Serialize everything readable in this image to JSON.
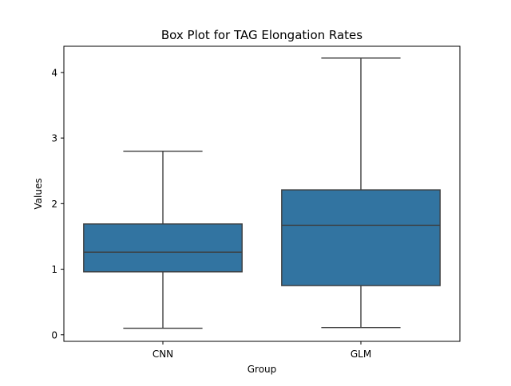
{
  "chart_data": {
    "type": "box",
    "title": "Box Plot for TAG Elongation Rates",
    "xlabel": "Group",
    "ylabel": "Values",
    "categories": [
      "CNN",
      "GLM"
    ],
    "boxes": [
      {
        "category": "CNN",
        "min": 0.1,
        "q1": 0.96,
        "median": 1.26,
        "q3": 1.69,
        "max": 2.8
      },
      {
        "category": "GLM",
        "min": 0.11,
        "q1": 0.75,
        "median": 1.67,
        "q3": 2.21,
        "max": 4.22
      }
    ],
    "ylim": [
      -0.1,
      4.4
    ],
    "yticks": [
      0,
      1,
      2,
      3,
      4
    ],
    "grid": false,
    "colors": {
      "box_fill": "#3274a1",
      "line": "#3d3d3d",
      "axis": "#000000"
    }
  }
}
